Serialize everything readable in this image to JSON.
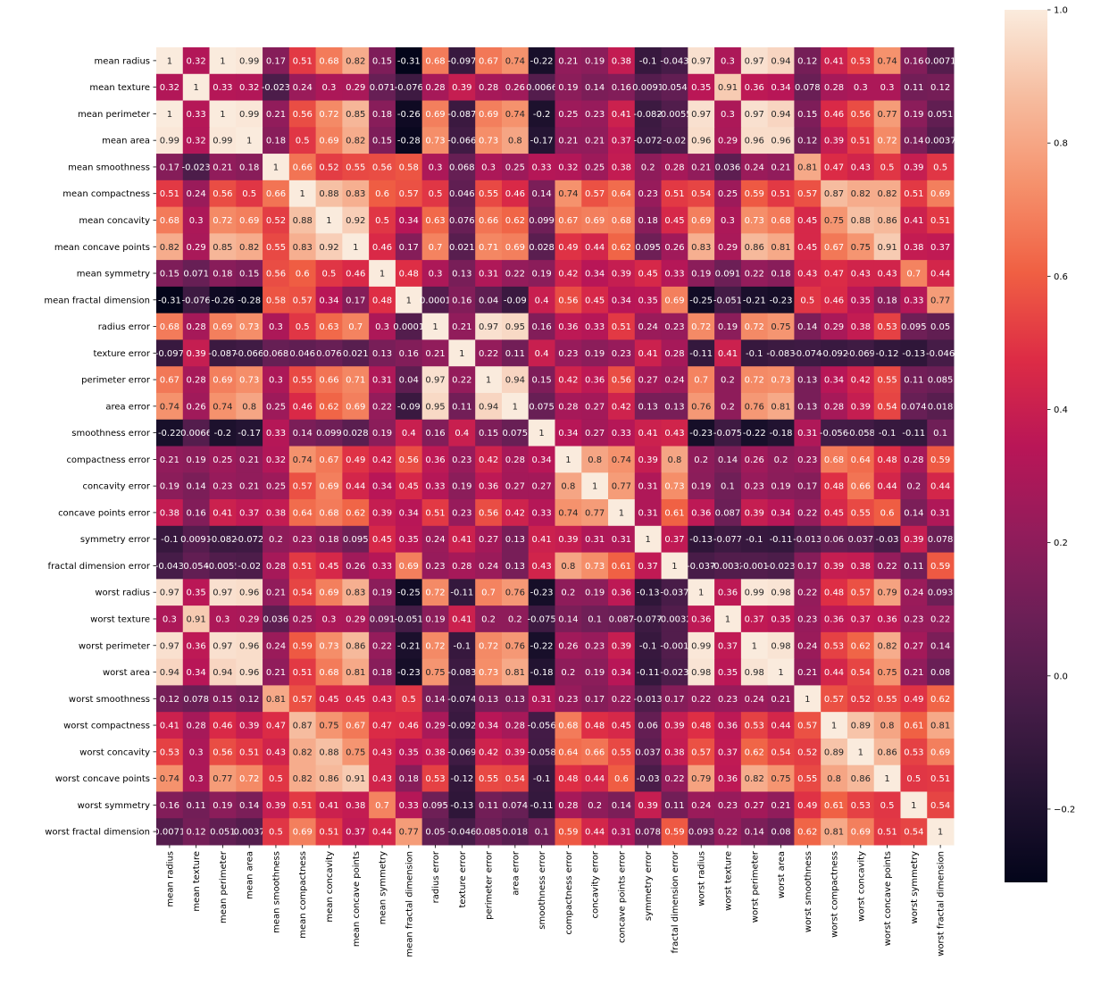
{
  "chart_data": {
    "type": "heatmap",
    "title": "",
    "xlabel": "",
    "ylabel": "",
    "colormap": "rocket",
    "vmin": -0.31,
    "vmax": 1.0,
    "annotated": true,
    "square": true,
    "colorbar": {
      "placement": "right",
      "ticks": [
        1.0,
        0.8,
        0.6,
        0.4,
        0.2,
        0.0,
        -0.2
      ],
      "tick_labels": [
        "1.0",
        "0.8",
        "0.6",
        "0.4",
        "0.2",
        "0.0",
        "−0.2"
      ]
    },
    "labels": [
      "mean radius",
      "mean texture",
      "mean perimeter",
      "mean area",
      "mean smoothness",
      "mean compactness",
      "mean concavity",
      "mean concave points",
      "mean symmetry",
      "mean fractal dimension",
      "radius error",
      "texture error",
      "perimeter error",
      "area error",
      "smoothness error",
      "compactness error",
      "concavity error",
      "concave points error",
      "symmetry error",
      "fractal dimension error",
      "worst radius",
      "worst texture",
      "worst perimeter",
      "worst area",
      "worst smoothness",
      "worst compactness",
      "worst concavity",
      "worst concave points",
      "worst symmetry",
      "worst fractal dimension"
    ],
    "matrix": [
      [
        1,
        0.32,
        1,
        0.99,
        0.17,
        0.51,
        0.68,
        0.82,
        0.15,
        -0.31,
        0.68,
        -0.097,
        0.67,
        0.74,
        -0.22,
        0.21,
        0.19,
        0.38,
        -0.1,
        -0.043,
        0.97,
        0.3,
        0.97,
        0.94,
        0.12,
        0.41,
        0.53,
        0.74,
        0.16,
        0.0071
      ],
      [
        0.32,
        1,
        0.33,
        0.32,
        -0.023,
        0.24,
        0.3,
        0.29,
        0.071,
        -0.076,
        0.28,
        0.39,
        0.28,
        0.26,
        0.0066,
        0.19,
        0.14,
        0.16,
        0.0091,
        0.054,
        0.35,
        0.91,
        0.36,
        0.34,
        0.078,
        0.28,
        0.3,
        0.3,
        0.11,
        0.12
      ],
      [
        1,
        0.33,
        1,
        0.99,
        0.21,
        0.56,
        0.72,
        0.85,
        0.18,
        -0.26,
        0.69,
        -0.087,
        0.69,
        0.74,
        -0.2,
        0.25,
        0.23,
        0.41,
        -0.082,
        -0.0055,
        0.97,
        0.3,
        0.97,
        0.94,
        0.15,
        0.46,
        0.56,
        0.77,
        0.19,
        0.051
      ],
      [
        0.99,
        0.32,
        0.99,
        1,
        0.18,
        0.5,
        0.69,
        0.82,
        0.15,
        -0.28,
        0.73,
        -0.066,
        0.73,
        0.8,
        -0.17,
        0.21,
        0.21,
        0.37,
        -0.072,
        -0.02,
        0.96,
        0.29,
        0.96,
        0.96,
        0.12,
        0.39,
        0.51,
        0.72,
        0.14,
        0.0037
      ],
      [
        0.17,
        -0.023,
        0.21,
        0.18,
        1,
        0.66,
        0.52,
        0.55,
        0.56,
        0.58,
        0.3,
        0.068,
        0.3,
        0.25,
        0.33,
        0.32,
        0.25,
        0.38,
        0.2,
        0.28,
        0.21,
        0.036,
        0.24,
        0.21,
        0.81,
        0.47,
        0.43,
        0.5,
        0.39,
        0.5
      ],
      [
        0.51,
        0.24,
        0.56,
        0.5,
        0.66,
        1,
        0.88,
        0.83,
        0.6,
        0.57,
        0.5,
        0.046,
        0.55,
        0.46,
        0.14,
        0.74,
        0.57,
        0.64,
        0.23,
        0.51,
        0.54,
        0.25,
        0.59,
        0.51,
        0.57,
        0.87,
        0.82,
        0.82,
        0.51,
        0.69
      ],
      [
        0.68,
        0.3,
        0.72,
        0.69,
        0.52,
        0.88,
        1,
        0.92,
        0.5,
        0.34,
        0.63,
        0.076,
        0.66,
        0.62,
        0.099,
        0.67,
        0.69,
        0.68,
        0.18,
        0.45,
        0.69,
        0.3,
        0.73,
        0.68,
        0.45,
        0.75,
        0.88,
        0.86,
        0.41,
        0.51
      ],
      [
        0.82,
        0.29,
        0.85,
        0.82,
        0.55,
        0.83,
        0.92,
        1,
        0.46,
        0.17,
        0.7,
        0.021,
        0.71,
        0.69,
        0.028,
        0.49,
        0.44,
        0.62,
        0.095,
        0.26,
        0.83,
        0.29,
        0.86,
        0.81,
        0.45,
        0.67,
        0.75,
        0.91,
        0.38,
        0.37
      ],
      [
        0.15,
        0.071,
        0.18,
        0.15,
        0.56,
        0.6,
        0.5,
        0.46,
        1,
        0.48,
        0.3,
        0.13,
        0.31,
        0.22,
        0.19,
        0.42,
        0.34,
        0.39,
        0.45,
        0.33,
        0.19,
        0.091,
        0.22,
        0.18,
        0.43,
        0.47,
        0.43,
        0.43,
        0.7,
        0.44
      ],
      [
        -0.31,
        -0.076,
        -0.26,
        -0.28,
        0.58,
        0.57,
        0.34,
        0.17,
        0.48,
        1,
        0.0001,
        0.16,
        0.04,
        -0.09,
        0.4,
        0.56,
        0.45,
        0.34,
        0.35,
        0.69,
        -0.25,
        -0.051,
        -0.21,
        -0.23,
        0.5,
        0.46,
        0.35,
        0.18,
        0.33,
        0.77
      ],
      [
        0.68,
        0.28,
        0.69,
        0.73,
        0.3,
        0.5,
        0.63,
        0.7,
        0.3,
        0.0001,
        1,
        0.21,
        0.97,
        0.95,
        0.16,
        0.36,
        0.33,
        0.51,
        0.24,
        0.23,
        0.72,
        0.19,
        0.72,
        0.75,
        0.14,
        0.29,
        0.38,
        0.53,
        0.095,
        0.05
      ],
      [
        -0.097,
        0.39,
        -0.087,
        -0.066,
        0.068,
        0.046,
        0.076,
        0.021,
        0.13,
        0.16,
        0.21,
        1,
        0.22,
        0.11,
        0.4,
        0.23,
        0.19,
        0.23,
        0.41,
        0.28,
        -0.11,
        0.41,
        -0.1,
        -0.083,
        -0.074,
        -0.092,
        -0.069,
        -0.12,
        -0.13,
        -0.046
      ],
      [
        0.67,
        0.28,
        0.69,
        0.73,
        0.3,
        0.55,
        0.66,
        0.71,
        0.31,
        0.04,
        0.97,
        0.22,
        1,
        0.94,
        0.15,
        0.42,
        0.36,
        0.56,
        0.27,
        0.24,
        0.7,
        0.2,
        0.72,
        0.73,
        0.13,
        0.34,
        0.42,
        0.55,
        0.11,
        0.085
      ],
      [
        0.74,
        0.26,
        0.74,
        0.8,
        0.25,
        0.46,
        0.62,
        0.69,
        0.22,
        -0.09,
        0.95,
        0.11,
        0.94,
        1,
        0.075,
        0.28,
        0.27,
        0.42,
        0.13,
        0.13,
        0.76,
        0.2,
        0.76,
        0.81,
        0.13,
        0.28,
        0.39,
        0.54,
        0.074,
        0.018
      ],
      [
        -0.22,
        0.0066,
        -0.2,
        -0.17,
        0.33,
        0.14,
        0.099,
        0.028,
        0.19,
        0.4,
        0.16,
        0.4,
        0.15,
        0.075,
        1,
        0.34,
        0.27,
        0.33,
        0.41,
        0.43,
        -0.23,
        -0.075,
        -0.22,
        -0.18,
        0.31,
        -0.056,
        -0.058,
        -0.1,
        -0.11,
        0.1
      ],
      [
        0.21,
        0.19,
        0.25,
        0.21,
        0.32,
        0.74,
        0.67,
        0.49,
        0.42,
        0.56,
        0.36,
        0.23,
        0.42,
        0.28,
        0.34,
        1,
        0.8,
        0.74,
        0.39,
        0.8,
        0.2,
        0.14,
        0.26,
        0.2,
        0.23,
        0.68,
        0.64,
        0.48,
        0.28,
        0.59
      ],
      [
        0.19,
        0.14,
        0.23,
        0.21,
        0.25,
        0.57,
        0.69,
        0.44,
        0.34,
        0.45,
        0.33,
        0.19,
        0.36,
        0.27,
        0.27,
        0.8,
        1,
        0.77,
        0.31,
        0.73,
        0.19,
        0.1,
        0.23,
        0.19,
        0.17,
        0.48,
        0.66,
        0.44,
        0.2,
        0.44
      ],
      [
        0.38,
        0.16,
        0.41,
        0.37,
        0.38,
        0.64,
        0.68,
        0.62,
        0.39,
        0.34,
        0.51,
        0.23,
        0.56,
        0.42,
        0.33,
        0.74,
        0.77,
        1,
        0.31,
        0.61,
        0.36,
        0.087,
        0.39,
        0.34,
        0.22,
        0.45,
        0.55,
        0.6,
        0.14,
        0.31
      ],
      [
        -0.1,
        0.0091,
        -0.082,
        -0.072,
        0.2,
        0.23,
        0.18,
        0.095,
        0.45,
        0.35,
        0.24,
        0.41,
        0.27,
        0.13,
        0.41,
        0.39,
        0.31,
        0.31,
        1,
        0.37,
        -0.13,
        -0.077,
        -0.1,
        -0.11,
        -0.013,
        0.06,
        0.037,
        -0.03,
        0.39,
        0.078
      ],
      [
        -0.043,
        0.054,
        -0.0055,
        -0.02,
        0.28,
        0.51,
        0.45,
        0.26,
        0.33,
        0.69,
        0.23,
        0.28,
        0.24,
        0.13,
        0.43,
        0.8,
        0.73,
        0.61,
        0.37,
        1,
        -0.037,
        -0.0032,
        -0.001,
        -0.023,
        0.17,
        0.39,
        0.38,
        0.22,
        0.11,
        0.59
      ],
      [
        0.97,
        0.35,
        0.97,
        0.96,
        0.21,
        0.54,
        0.69,
        0.83,
        0.19,
        -0.25,
        0.72,
        -0.11,
        0.7,
        0.76,
        -0.23,
        0.2,
        0.19,
        0.36,
        -0.13,
        -0.037,
        1,
        0.36,
        0.99,
        0.98,
        0.22,
        0.48,
        0.57,
        0.79,
        0.24,
        0.093
      ],
      [
        0.3,
        0.91,
        0.3,
        0.29,
        0.036,
        0.25,
        0.3,
        0.29,
        0.091,
        -0.051,
        0.19,
        0.41,
        0.2,
        0.2,
        -0.075,
        0.14,
        0.1,
        0.087,
        -0.077,
        -0.0032,
        0.36,
        1,
        0.37,
        0.35,
        0.23,
        0.36,
        0.37,
        0.36,
        0.23,
        0.22
      ],
      [
        0.97,
        0.36,
        0.97,
        0.96,
        0.24,
        0.59,
        0.73,
        0.86,
        0.22,
        -0.21,
        0.72,
        -0.1,
        0.72,
        0.76,
        -0.22,
        0.26,
        0.23,
        0.39,
        -0.1,
        -0.001,
        0.99,
        0.37,
        1,
        0.98,
        0.24,
        0.53,
        0.62,
        0.82,
        0.27,
        0.14
      ],
      [
        0.94,
        0.34,
        0.94,
        0.96,
        0.21,
        0.51,
        0.68,
        0.81,
        0.18,
        -0.23,
        0.75,
        -0.083,
        0.73,
        0.81,
        -0.18,
        0.2,
        0.19,
        0.34,
        -0.11,
        -0.023,
        0.98,
        0.35,
        0.98,
        1,
        0.21,
        0.44,
        0.54,
        0.75,
        0.21,
        0.08
      ],
      [
        0.12,
        0.078,
        0.15,
        0.12,
        0.81,
        0.57,
        0.45,
        0.45,
        0.43,
        0.5,
        0.14,
        -0.074,
        0.13,
        0.13,
        0.31,
        0.23,
        0.17,
        0.22,
        -0.013,
        0.17,
        0.22,
        0.23,
        0.24,
        0.21,
        1,
        0.57,
        0.52,
        0.55,
        0.49,
        0.62
      ],
      [
        0.41,
        0.28,
        0.46,
        0.39,
        0.47,
        0.87,
        0.75,
        0.67,
        0.47,
        0.46,
        0.29,
        -0.092,
        0.34,
        0.28,
        -0.056,
        0.68,
        0.48,
        0.45,
        0.06,
        0.39,
        0.48,
        0.36,
        0.53,
        0.44,
        0.57,
        1,
        0.89,
        0.8,
        0.61,
        0.81
      ],
      [
        0.53,
        0.3,
        0.56,
        0.51,
        0.43,
        0.82,
        0.88,
        0.75,
        0.43,
        0.35,
        0.38,
        -0.069,
        0.42,
        0.39,
        -0.058,
        0.64,
        0.66,
        0.55,
        0.037,
        0.38,
        0.57,
        0.37,
        0.62,
        0.54,
        0.52,
        0.89,
        1,
        0.86,
        0.53,
        0.69
      ],
      [
        0.74,
        0.3,
        0.77,
        0.72,
        0.5,
        0.82,
        0.86,
        0.91,
        0.43,
        0.18,
        0.53,
        -0.12,
        0.55,
        0.54,
        -0.1,
        0.48,
        0.44,
        0.6,
        -0.03,
        0.22,
        0.79,
        0.36,
        0.82,
        0.75,
        0.55,
        0.8,
        0.86,
        1,
        0.5,
        0.51
      ],
      [
        0.16,
        0.11,
        0.19,
        0.14,
        0.39,
        0.51,
        0.41,
        0.38,
        0.7,
        0.33,
        0.095,
        -0.13,
        0.11,
        0.074,
        -0.11,
        0.28,
        0.2,
        0.14,
        0.39,
        0.11,
        0.24,
        0.23,
        0.27,
        0.21,
        0.49,
        0.61,
        0.53,
        0.5,
        1,
        0.54
      ],
      [
        0.0071,
        0.12,
        0.051,
        0.0037,
        0.5,
        0.69,
        0.51,
        0.37,
        0.44,
        0.77,
        0.05,
        -0.046,
        0.085,
        0.018,
        0.1,
        0.59,
        0.44,
        0.31,
        0.078,
        0.59,
        0.093,
        0.22,
        0.14,
        0.08,
        0.62,
        0.81,
        0.69,
        0.51,
        0.54,
        1
      ]
    ]
  }
}
